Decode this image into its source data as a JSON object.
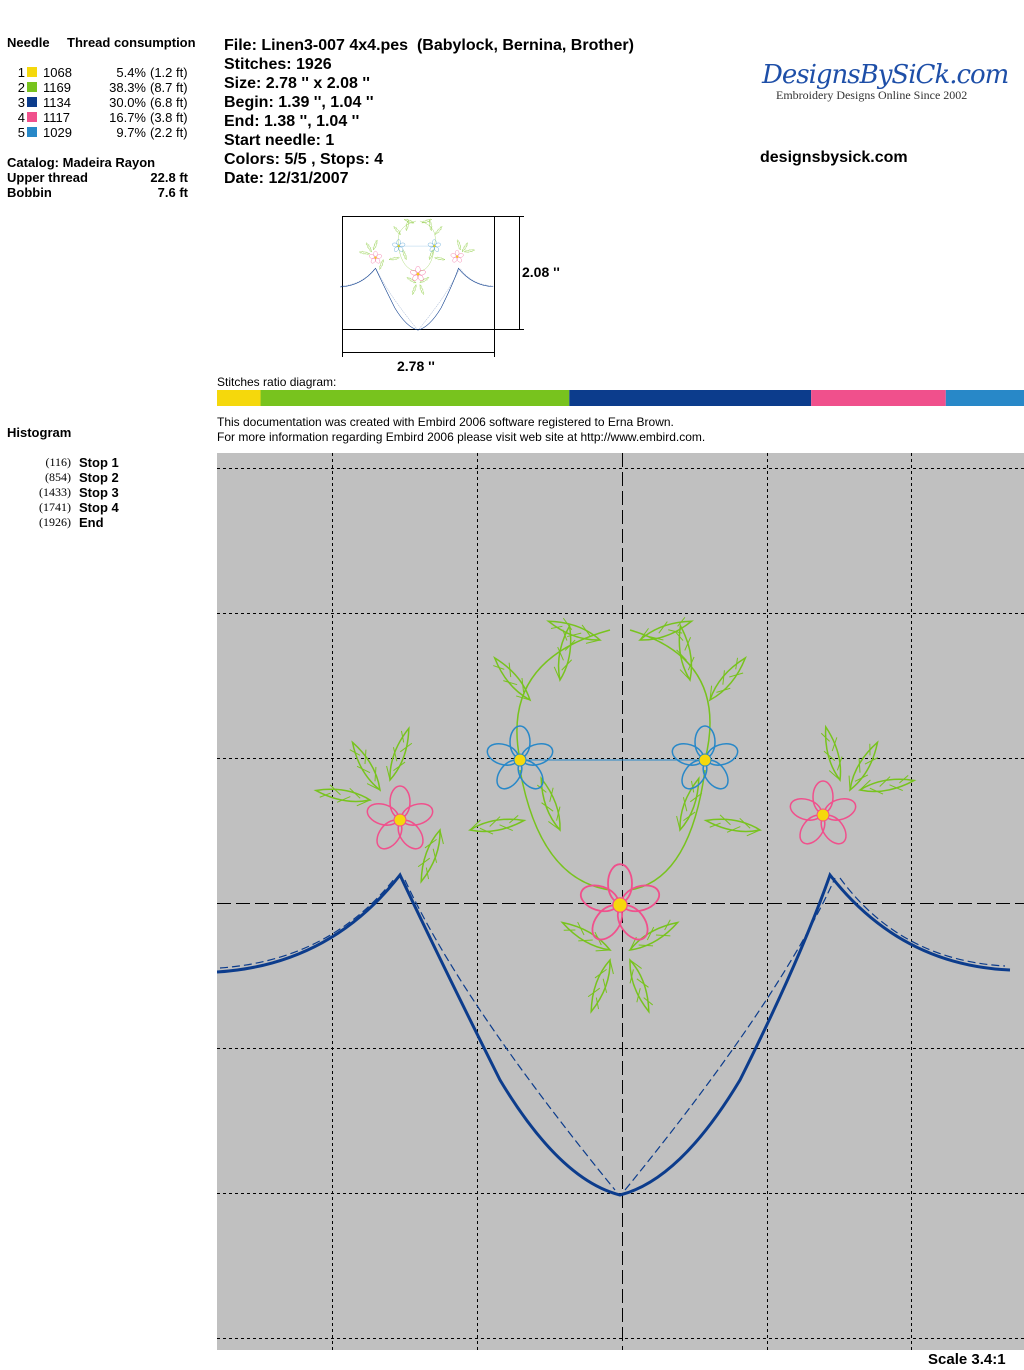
{
  "needles": {
    "header_needle": "Needle",
    "header_consumption": "Thread consumption",
    "rows": [
      {
        "needle": "1",
        "color": "#f5d80c",
        "code": "1068",
        "percent": {
          "value": 5.4,
          "label": "5.4%"
        },
        "length": "(1.2 ft)"
      },
      {
        "needle": "2",
        "color": "#78c31e",
        "code": "1169",
        "percent": {
          "value": 38.3,
          "label": "38.3%"
        },
        "length": "(8.7 ft)"
      },
      {
        "needle": "3",
        "color": "#0c3c8c",
        "code": "1134",
        "percent": {
          "value": 30.0,
          "label": "30.0%"
        },
        "length": "(6.8 ft)"
      },
      {
        "needle": "4",
        "color": "#f0508c",
        "code": "1117",
        "percent": {
          "value": 16.7,
          "label": "16.7%"
        },
        "length": "(3.8 ft)"
      },
      {
        "needle": "5",
        "color": "#2888c8",
        "code": "1029",
        "percent": {
          "value": 9.7,
          "label": "9.7%"
        },
        "length": "(2.2 ft)"
      }
    ]
  },
  "catalog": "Catalog: Madeira Rayon",
  "upper_thread": {
    "label": "Upper thread",
    "value": "22.8 ft"
  },
  "bobbin": {
    "label": "Bobbin",
    "value": "7.6 ft"
  },
  "file_info": [
    "File: Linen3-007 4x4.pes  (Babylock, Bernina, Brother)",
    "Stitches: 1926",
    "Size: 2.78 '' x 2.08 ''",
    "Begin: 1.39 '', 1.04 ''",
    "End: 1.38 '', 1.04 ''",
    "Start needle: 1",
    "Colors: 5/5 , Stops: 4",
    "Date: 12/31/2007"
  ],
  "logo": {
    "title": "DesignsBySiCk.com",
    "tagline": "Embroidery Designs Online Since 2002"
  },
  "website": "designsbysick.com",
  "thumbnail": {
    "height": "2.08 ''",
    "width": "2.78 ''"
  },
  "ratio_title": "Stitches ratio diagram:",
  "note": [
    "This documentation was created with Embird 2006 software registered to Erna Brown.",
    "For more information regarding Embird 2006 please visit web site at http://www.embird.com."
  ],
  "histogram": {
    "title": "Histogram",
    "stops": [
      {
        "count": "(116)",
        "label": "Stop 1"
      },
      {
        "count": "(854)",
        "label": "Stop 2"
      },
      {
        "count": "(1433)",
        "label": "Stop 3"
      },
      {
        "count": "(1741)",
        "label": "Stop 4"
      },
      {
        "count": "(1926)",
        "label": "End"
      }
    ]
  },
  "scale": "Scale 3.4:1"
}
